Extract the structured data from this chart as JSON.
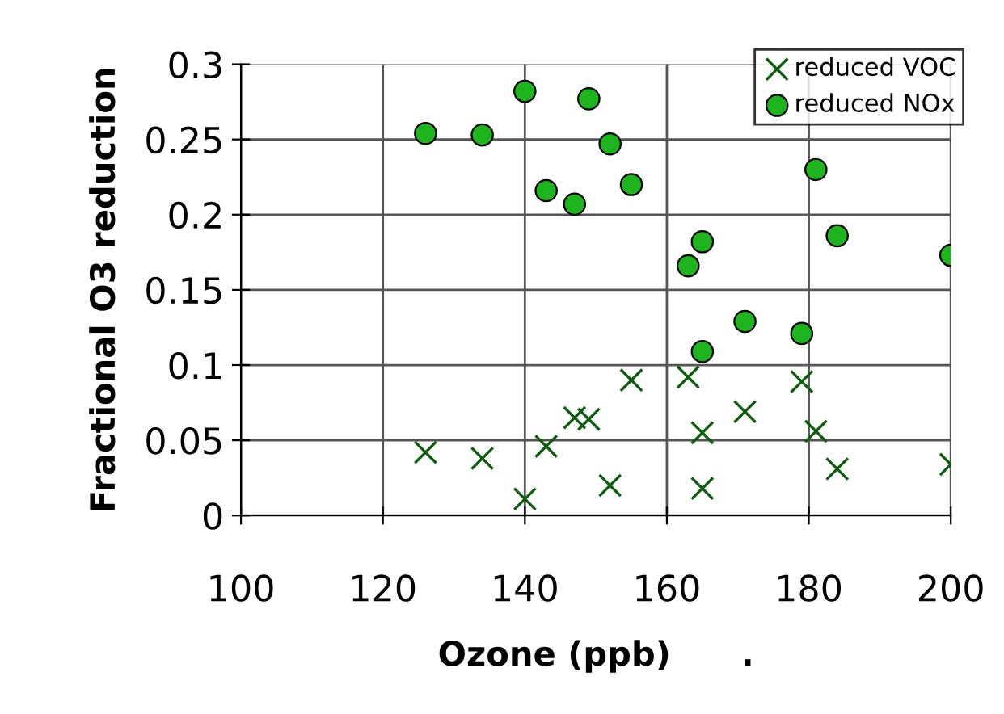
{
  "chart_data": {
    "type": "scatter",
    "xlabel": "Ozone (ppb)      .",
    "ylabel": "Fractional O3 reduction",
    "xlim": [
      100,
      200
    ],
    "xticks": [
      100,
      120,
      140,
      160,
      180,
      200
    ],
    "ylim": [
      0,
      0.3
    ],
    "yticks": [
      0,
      0.05,
      0.1,
      0.15,
      0.2,
      0.25,
      0.3
    ],
    "grid": true,
    "legend": "top right",
    "series": [
      {
        "name": "reduced VOC",
        "color": "#0b5e0b",
        "marker": "cross",
        "x": [
          126,
          134,
          140,
          143,
          147,
          149,
          152,
          155,
          163,
          165,
          165,
          171,
          179,
          181,
          184,
          200
        ],
        "values": [
          0.042,
          0.038,
          0.011,
          0.046,
          0.065,
          0.064,
          0.02,
          0.09,
          0.092,
          0.055,
          0.018,
          0.069,
          0.089,
          0.056,
          0.031,
          0.034
        ]
      },
      {
        "name": "reduced NOx",
        "color": "#1eb41e",
        "marker": "circle",
        "x": [
          126,
          134,
          140,
          149,
          152,
          143,
          147,
          155,
          163,
          165,
          165,
          171,
          179,
          181,
          184,
          200
        ],
        "values": [
          0.254,
          0.253,
          0.282,
          0.277,
          0.247,
          0.216,
          0.207,
          0.22,
          0.166,
          0.182,
          0.109,
          0.129,
          0.121,
          0.23,
          0.186,
          0.173
        ]
      }
    ]
  }
}
